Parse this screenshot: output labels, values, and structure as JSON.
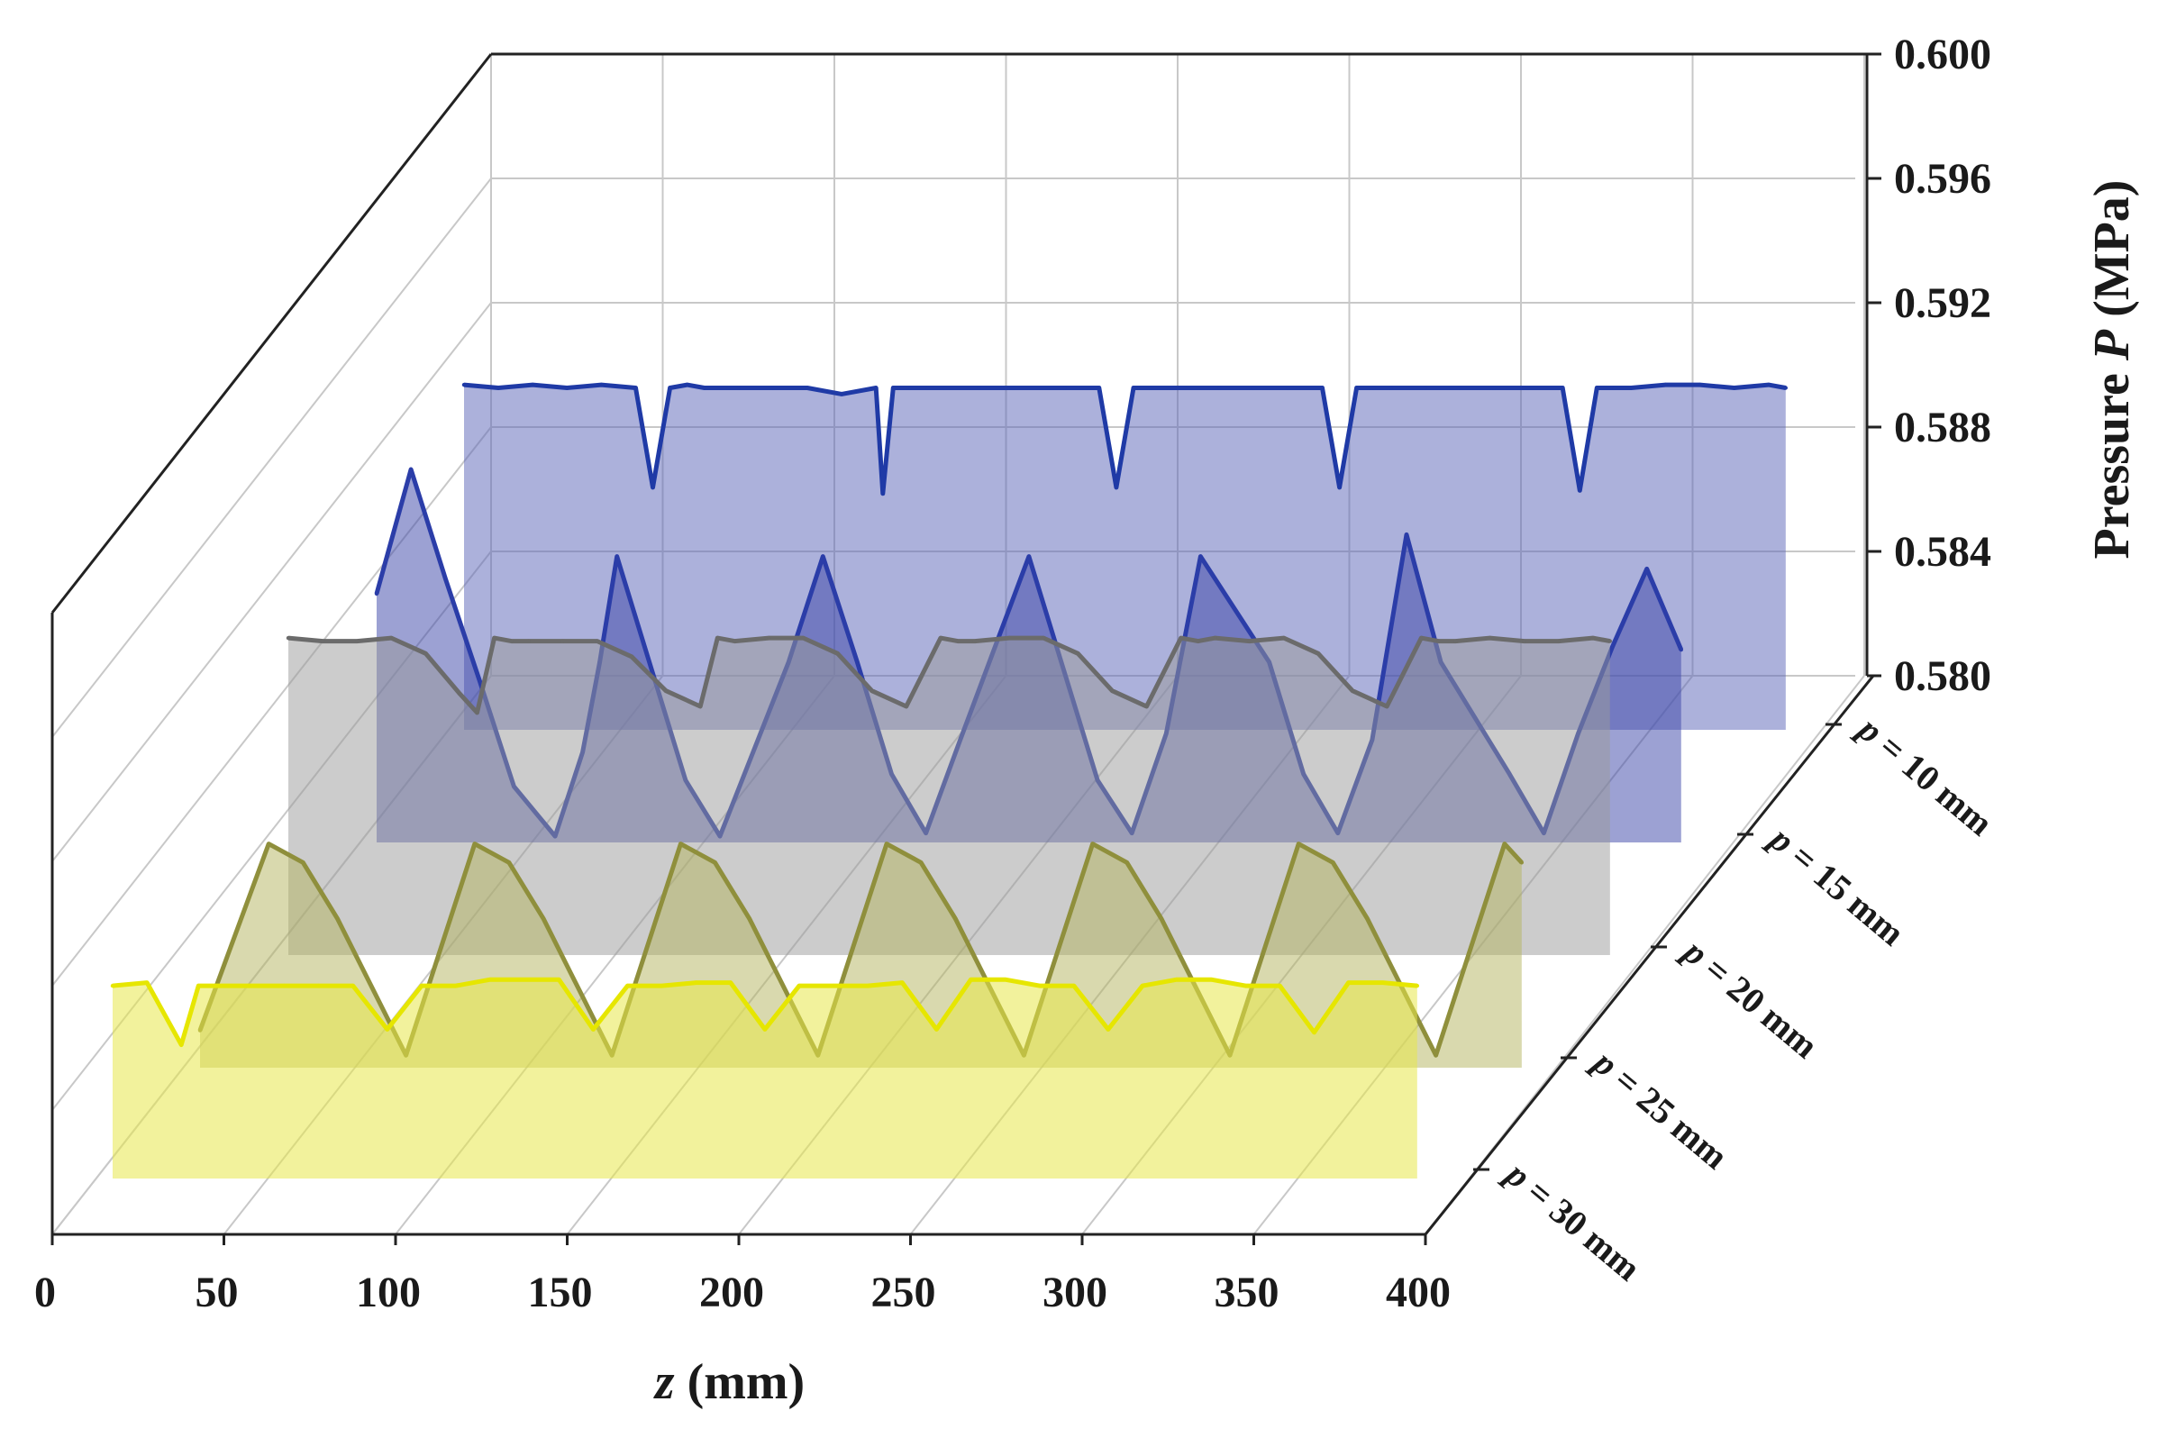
{
  "chart_data": {
    "type": "area",
    "title": "",
    "xlabel": "z (mm)",
    "xlabel_var": "z",
    "xlabel_unit": " (mm)",
    "ylabel": "Pressure P (MPa)",
    "ylabel_prefix": "Pressure ",
    "ylabel_var": "P",
    "ylabel_unit": " (MPa)",
    "xlim": [
      0,
      400
    ],
    "ylim": [
      0.58,
      0.6
    ],
    "x_ticks": [
      "0",
      "50",
      "100",
      "150",
      "200",
      "250",
      "300",
      "350",
      "400"
    ],
    "y_ticks": [
      "0.580",
      "0.584",
      "0.588",
      "0.592",
      "0.596",
      "0.600"
    ],
    "grid": true,
    "series": [
      {
        "name": "p = 10 mm",
        "label_var": "p",
        "label_rest": " = 10 mm",
        "color": "#1f3aa6",
        "fill": "#5a64b8",
        "x": [
          0,
          10,
          20,
          30,
          40,
          50,
          55,
          60,
          65,
          70,
          80,
          90,
          100,
          110,
          120,
          122,
          125,
          130,
          135,
          140,
          150,
          160,
          175,
          185,
          190,
          195,
          200,
          210,
          220,
          230,
          240,
          250,
          255,
          260,
          265,
          270,
          280,
          290,
          300,
          310,
          320,
          325,
          330,
          335,
          340,
          350,
          360,
          370,
          380,
          385
        ],
        "y": [
          0.5911,
          0.591,
          0.5911,
          0.591,
          0.5911,
          0.591,
          0.5878,
          0.591,
          0.5911,
          0.591,
          0.591,
          0.591,
          0.591,
          0.5908,
          0.591,
          0.5876,
          0.591,
          0.591,
          0.591,
          0.591,
          0.591,
          0.591,
          0.591,
          0.591,
          0.5878,
          0.591,
          0.591,
          0.591,
          0.591,
          0.591,
          0.591,
          0.591,
          0.5878,
          0.591,
          0.591,
          0.591,
          0.591,
          0.591,
          0.591,
          0.591,
          0.591,
          0.5877,
          0.591,
          0.591,
          0.591,
          0.5911,
          0.5911,
          0.591,
          0.5911,
          0.591
        ]
      },
      {
        "name": "p = 15 mm",
        "label_var": "p",
        "label_rest": " = 15 mm",
        "color": "#2b3da8",
        "fill": "#3a44a8",
        "x": [
          0,
          10,
          20,
          30,
          40,
          52,
          60,
          65,
          70,
          80,
          90,
          100,
          120,
          130,
          140,
          150,
          160,
          170,
          190,
          200,
          210,
          220,
          230,
          240,
          260,
          270,
          280,
          290,
          300,
          310,
          330,
          340,
          350,
          360,
          370,
          380
        ],
        "y": [
          0.588,
          0.592,
          0.5885,
          0.5852,
          0.5818,
          0.5802,
          0.5829,
          0.5858,
          0.5892,
          0.5856,
          0.582,
          0.5802,
          0.5858,
          0.5892,
          0.5858,
          0.5822,
          0.5803,
          0.5833,
          0.5892,
          0.5856,
          0.582,
          0.5803,
          0.5835,
          0.5892,
          0.5858,
          0.5822,
          0.5803,
          0.5833,
          0.5899,
          0.5858,
          0.5822,
          0.5803,
          0.5835,
          0.5863,
          0.5888,
          0.5862
        ]
      },
      {
        "name": "p = 20 mm",
        "label_var": "p",
        "label_rest": " = 20 mm",
        "color": "#6b6b6b",
        "fill": "#9a9a9a",
        "x": [
          0,
          10,
          20,
          30,
          40,
          50,
          55,
          60,
          65,
          70,
          80,
          90,
          100,
          110,
          120,
          125,
          130,
          140,
          150,
          160,
          170,
          180,
          190,
          195,
          200,
          210,
          220,
          230,
          240,
          250,
          260,
          265,
          270,
          280,
          290,
          300,
          310,
          320,
          330,
          335,
          340,
          350,
          360,
          370,
          380,
          385
        ],
        "y": [
          0.5902,
          0.5901,
          0.5901,
          0.5902,
          0.5897,
          0.5884,
          0.5878,
          0.5902,
          0.5901,
          0.5901,
          0.5901,
          0.5901,
          0.5896,
          0.5885,
          0.588,
          0.5902,
          0.5901,
          0.5902,
          0.5902,
          0.5897,
          0.5885,
          0.588,
          0.5902,
          0.5901,
          0.5901,
          0.5902,
          0.5902,
          0.5897,
          0.5885,
          0.588,
          0.5902,
          0.5901,
          0.5902,
          0.5901,
          0.5902,
          0.5897,
          0.5885,
          0.588,
          0.5902,
          0.5901,
          0.5901,
          0.5902,
          0.5901,
          0.5901,
          0.5902,
          0.5901
        ]
      },
      {
        "name": "p = 25 mm",
        "label_var": "p",
        "label_rest": " = 25 mm",
        "color": "#8f8f3c",
        "fill": "#b3b35e",
        "x": [
          0,
          10,
          20,
          30,
          40,
          50,
          60,
          70,
          80,
          90,
          100,
          110,
          120,
          130,
          140,
          150,
          160,
          170,
          180,
          190,
          200,
          210,
          220,
          230,
          240,
          250,
          260,
          270,
          280,
          290,
          300,
          310,
          320,
          330,
          340,
          350,
          360,
          370,
          380,
          385
        ],
        "y": [
          0.5812,
          0.5842,
          0.5872,
          0.5866,
          0.5848,
          0.5826,
          0.5804,
          0.5838,
          0.5872,
          0.5866,
          0.5848,
          0.5826,
          0.5804,
          0.5838,
          0.5872,
          0.5866,
          0.5848,
          0.5826,
          0.5804,
          0.5838,
          0.5872,
          0.5866,
          0.5848,
          0.5826,
          0.5804,
          0.5838,
          0.5872,
          0.5866,
          0.5848,
          0.5826,
          0.5804,
          0.5838,
          0.5872,
          0.5866,
          0.5848,
          0.5826,
          0.5804,
          0.5838,
          0.5872,
          0.5866
        ]
      },
      {
        "name": "p = 30 mm",
        "label_var": "p",
        "label_rest": " = 30 mm",
        "color": "#e6e600",
        "fill": "#e8e84a",
        "x": [
          0,
          10,
          20,
          25,
          30,
          40,
          50,
          60,
          70,
          80,
          90,
          100,
          110,
          120,
          130,
          140,
          150,
          160,
          170,
          180,
          190,
          200,
          210,
          220,
          230,
          240,
          250,
          260,
          270,
          280,
          290,
          300,
          310,
          320,
          330,
          340,
          350,
          360,
          370,
          380
        ],
        "y": [
          0.5862,
          0.5863,
          0.5843,
          0.5862,
          0.5862,
          0.5862,
          0.5862,
          0.5862,
          0.5862,
          0.5848,
          0.5862,
          0.5862,
          0.5864,
          0.5864,
          0.5864,
          0.5848,
          0.5862,
          0.5862,
          0.5863,
          0.5863,
          0.5848,
          0.5862,
          0.5862,
          0.5862,
          0.5863,
          0.5848,
          0.5864,
          0.5864,
          0.5862,
          0.5862,
          0.5848,
          0.5862,
          0.5864,
          0.5864,
          0.5862,
          0.5862,
          0.5847,
          0.5863,
          0.5863,
          0.5862
        ]
      }
    ]
  }
}
